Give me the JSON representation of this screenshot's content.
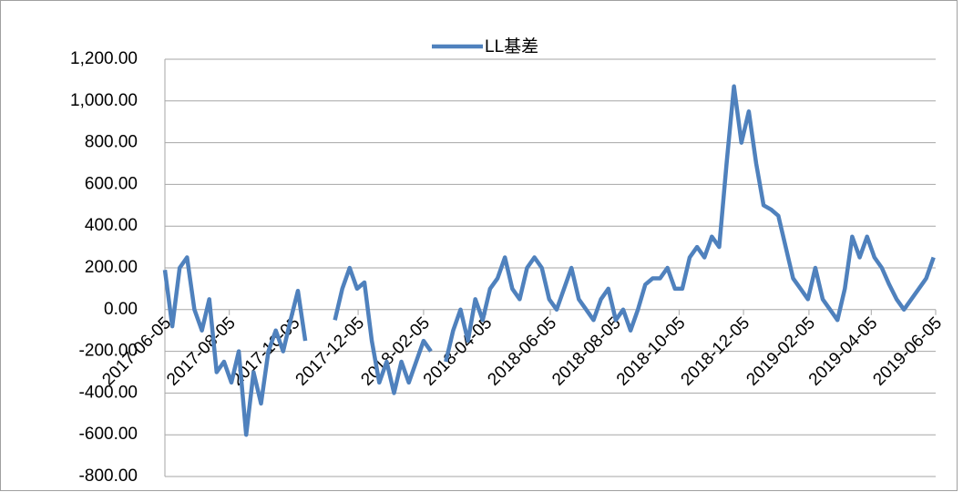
{
  "chart_data": {
    "type": "line",
    "x": [
      "2017-06-05",
      "2017-06-12",
      "2017-06-19",
      "2017-06-26",
      "2017-07-03",
      "2017-07-10",
      "2017-07-17",
      "2017-07-24",
      "2017-07-31",
      "2017-08-07",
      "2017-08-14",
      "2017-08-21",
      "2017-08-28",
      "2017-09-04",
      "2017-09-11",
      "2017-09-18",
      "2017-09-25",
      "2017-10-02",
      "2017-10-09",
      "2017-10-16",
      "2017-10-23",
      "2017-10-30",
      "2017-11-06",
      "2017-11-13",
      "2017-11-20",
      "2017-11-27",
      "2017-12-04",
      "2017-12-11",
      "2017-12-18",
      "2017-12-25",
      "2018-01-01",
      "2018-01-08",
      "2018-01-15",
      "2018-01-22",
      "2018-01-29",
      "2018-02-05",
      "2018-02-12",
      "2018-02-19",
      "2018-02-26",
      "2018-03-05",
      "2018-03-12",
      "2018-03-19",
      "2018-03-26",
      "2018-04-02",
      "2018-04-09",
      "2018-04-16",
      "2018-04-23",
      "2018-04-30",
      "2018-05-07",
      "2018-05-14",
      "2018-05-21",
      "2018-05-28",
      "2018-06-04",
      "2018-06-11",
      "2018-06-18",
      "2018-06-25",
      "2018-07-02",
      "2018-07-09",
      "2018-07-16",
      "2018-07-23",
      "2018-07-30",
      "2018-08-06",
      "2018-08-13",
      "2018-08-20",
      "2018-08-27",
      "2018-09-03",
      "2018-09-10",
      "2018-09-17",
      "2018-09-24",
      "2018-10-01",
      "2018-10-08",
      "2018-10-15",
      "2018-10-22",
      "2018-10-29",
      "2018-11-05",
      "2018-11-12",
      "2018-11-19",
      "2018-11-26",
      "2018-12-03",
      "2018-12-10",
      "2018-12-17",
      "2018-12-24",
      "2018-12-31",
      "2019-01-07",
      "2019-01-14",
      "2019-01-21",
      "2019-01-28",
      "2019-02-04",
      "2019-02-11",
      "2019-02-18",
      "2019-02-25",
      "2019-03-04",
      "2019-03-11",
      "2019-03-18",
      "2019-03-25",
      "2019-04-01",
      "2019-04-08",
      "2019-04-15",
      "2019-04-22",
      "2019-04-29",
      "2019-05-06",
      "2019-05-13",
      "2019-05-20",
      "2019-05-27",
      "2019-06-03"
    ],
    "series": [
      {
        "name": "LL基差",
        "color": "#4f81bd",
        "values": [
          190,
          -80,
          200,
          250,
          0,
          -100,
          50,
          -300,
          -250,
          -350,
          -200,
          -600,
          -300,
          -450,
          -200,
          -100,
          -200,
          -50,
          90,
          -150,
          null,
          null,
          null,
          -50,
          100,
          200,
          100,
          130,
          -150,
          -350,
          -250,
          -400,
          -250,
          -350,
          -250,
          -150,
          -200,
          null,
          -250,
          -100,
          0,
          -150,
          50,
          -50,
          100,
          150,
          250,
          100,
          50,
          200,
          250,
          200,
          50,
          0,
          100,
          200,
          50,
          0,
          -50,
          50,
          100,
          -50,
          0,
          -100,
          0,
          120,
          150,
          150,
          200,
          100,
          100,
          250,
          300,
          250,
          350,
          300,
          700,
          1070,
          800,
          950,
          700,
          500,
          480,
          450,
          300,
          150,
          100,
          50,
          200,
          50,
          0,
          -50,
          100,
          350,
          250,
          350,
          250,
          200,
          120,
          50,
          0,
          50,
          100,
          150,
          250
        ]
      }
    ],
    "xlim": [
      "2017-06-05",
      "2019-06-05"
    ],
    "xticks": [
      "2017-06-05",
      "2017-08-05",
      "2017-10-05",
      "2017-12-05",
      "2018-02-05",
      "2018-04-05",
      "2018-06-05",
      "2018-08-05",
      "2018-10-05",
      "2018-12-05",
      "2019-02-05",
      "2019-04-05",
      "2019-06-05"
    ],
    "ylim": [
      -800,
      1200
    ],
    "yticks": [
      {
        "value": -800,
        "label": "-800.00"
      },
      {
        "value": -600,
        "label": "-600.00"
      },
      {
        "value": -400,
        "label": "-400.00"
      },
      {
        "value": -200,
        "label": "-200.00"
      },
      {
        "value": 0,
        "label": "0.00"
      },
      {
        "value": 200,
        "label": "200.00"
      },
      {
        "value": 400,
        "label": "400.00"
      },
      {
        "value": 600,
        "label": "600.00"
      },
      {
        "value": 800,
        "label": "800.00"
      },
      {
        "value": 1000,
        "label": "1,000.00"
      },
      {
        "value": 1200,
        "label": "1,200.00"
      }
    ],
    "grid": true,
    "legend": "top"
  }
}
